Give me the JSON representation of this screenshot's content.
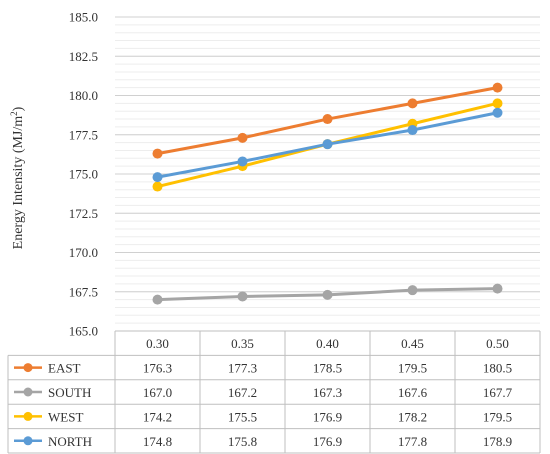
{
  "chart_data": {
    "type": "line",
    "ylabel": "Energy Intensity (MJ/m",
    "ylabel_sup": "2",
    "ylabel_close": ")",
    "ylim": [
      165.0,
      185.0
    ],
    "y_ticks": [
      "165.0",
      "167.5",
      "170.0",
      "172.5",
      "175.0",
      "177.5",
      "180.0",
      "182.5",
      "185.0"
    ],
    "y_tick_values": [
      165.0,
      167.5,
      170.0,
      172.5,
      175.0,
      177.5,
      180.0,
      182.5,
      185.0
    ],
    "minor_grid_step": 0.5,
    "grid": true,
    "legend": "data-table",
    "categories": [
      "0.30",
      "0.35",
      "0.40",
      "0.45",
      "0.50"
    ],
    "series": [
      {
        "name": "EAST",
        "color": "#ED7D31",
        "values": [
          176.3,
          177.3,
          178.5,
          179.5,
          180.5
        ],
        "labels": [
          "176.3",
          "177.3",
          "178.5",
          "179.5",
          "180.5"
        ]
      },
      {
        "name": "SOUTH",
        "color": "#A5A5A5",
        "values": [
          167.0,
          167.2,
          167.3,
          167.6,
          167.7
        ],
        "labels": [
          "167.0",
          "167.2",
          "167.3",
          "167.6",
          "167.7"
        ]
      },
      {
        "name": "WEST",
        "color": "#FFC000",
        "values": [
          174.2,
          175.5,
          176.9,
          178.2,
          179.5
        ],
        "labels": [
          "174.2",
          "175.5",
          "176.9",
          "178.2",
          "179.5"
        ]
      },
      {
        "name": "NORTH",
        "color": "#5B9BD5",
        "values": [
          174.8,
          175.8,
          176.9,
          177.8,
          178.9
        ],
        "labels": [
          "174.8",
          "175.8",
          "176.9",
          "177.8",
          "178.9"
        ]
      }
    ]
  }
}
